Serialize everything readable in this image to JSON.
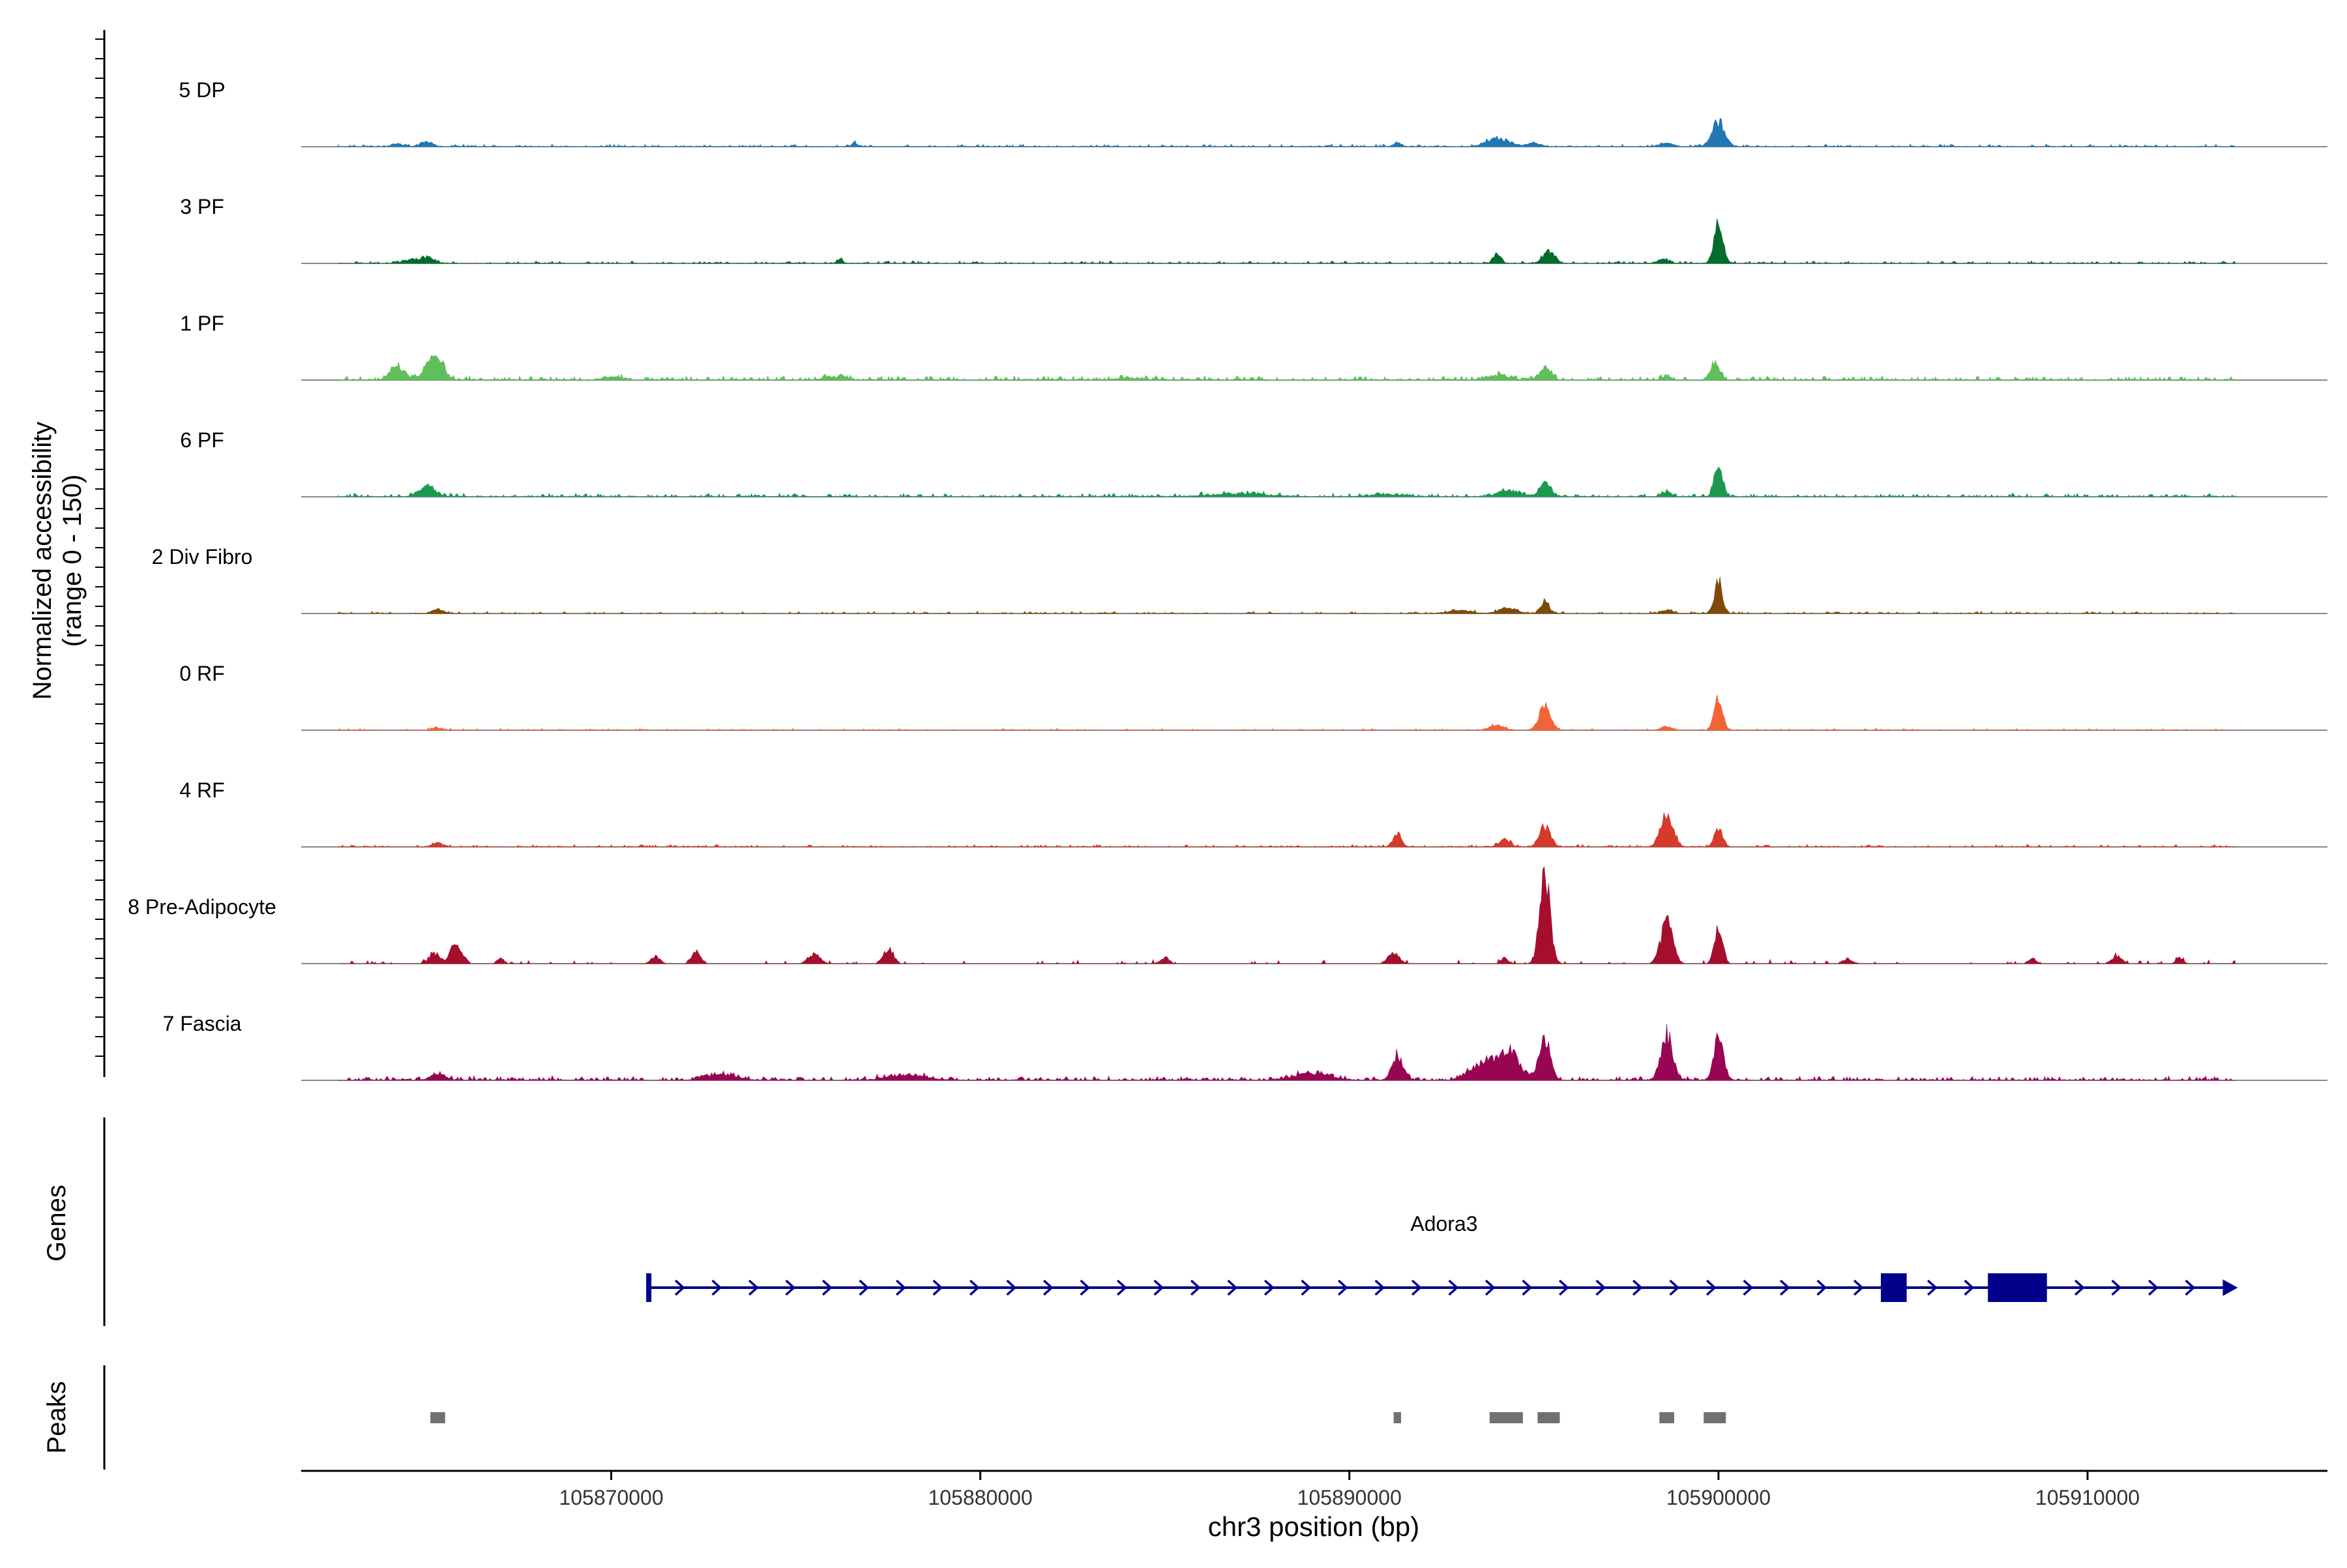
{
  "chart_data": {
    "type": "area",
    "xlabel": "chr3 position (bp)",
    "ylabel_line1": "Normalized accessibility",
    "ylabel_line2": "(range 0 - 150)",
    "y_range": [
      0,
      150
    ],
    "x_range": [
      105861600,
      105916500
    ],
    "x_ticks": [
      {
        "value": 105870000,
        "label": "105870000"
      },
      {
        "value": 105880000,
        "label": "105880000"
      },
      {
        "value": 105890000,
        "label": "105890000"
      },
      {
        "value": 105900000,
        "label": "105900000"
      },
      {
        "value": 105910000,
        "label": "105910000"
      }
    ],
    "signal_start": 105862600,
    "signal_end": 105914000,
    "tracks": [
      {
        "name": "5 DP",
        "color": "#1f78b4",
        "noise": 3,
        "density": 0.55,
        "peaks": [
          [
            105864200,
            4,
            150
          ],
          [
            105865000,
            7,
            160
          ],
          [
            105876600,
            5,
            80
          ],
          [
            105891300,
            6,
            100
          ],
          [
            105894000,
            11,
            300
          ],
          [
            105895000,
            5,
            180
          ],
          [
            105898600,
            4,
            200
          ],
          [
            105900000,
            33,
            170
          ]
        ]
      },
      {
        "name": "3 PF",
        "color": "#006d2c",
        "noise": 3,
        "density": 0.55,
        "peaks": [
          [
            105864500,
            4,
            180
          ],
          [
            105865000,
            8,
            200
          ],
          [
            105876200,
            5,
            80
          ],
          [
            105894000,
            12,
            100
          ],
          [
            105895400,
            16,
            160
          ],
          [
            105898500,
            5,
            150
          ],
          [
            105900000,
            50,
            120
          ]
        ]
      },
      {
        "name": "1 PF",
        "color": "#5ebf5b",
        "noise": 5,
        "density": 0.75,
        "peaks": [
          [
            105864200,
            17,
            200
          ],
          [
            105865200,
            33,
            220
          ],
          [
            105870000,
            4,
            250
          ],
          [
            105876000,
            4,
            300
          ],
          [
            105884000,
            3,
            300
          ],
          [
            105894000,
            6,
            300
          ],
          [
            105895300,
            15,
            150
          ],
          [
            105898600,
            7,
            100
          ],
          [
            105899900,
            21,
            130
          ]
        ]
      },
      {
        "name": "6 PF",
        "color": "#1b9a4f",
        "noise": 4,
        "density": 0.7,
        "peaks": [
          [
            105865000,
            13,
            220
          ],
          [
            105887000,
            4,
            800
          ],
          [
            105891000,
            3,
            500
          ],
          [
            105894300,
            8,
            300
          ],
          [
            105895300,
            17,
            160
          ],
          [
            105898600,
            6,
            130
          ],
          [
            105900000,
            42,
            110
          ]
        ]
      },
      {
        "name": "2 Div Fibro",
        "color": "#7f4a05",
        "noise": 2.5,
        "density": 0.5,
        "peaks": [
          [
            105865300,
            6,
            150
          ],
          [
            105893000,
            4,
            300
          ],
          [
            105894300,
            7,
            250
          ],
          [
            105895300,
            15,
            120
          ],
          [
            105898600,
            5,
            150
          ],
          [
            105900000,
            42,
            110
          ]
        ]
      },
      {
        "name": "0 RF",
        "color": "#f26437",
        "noise": 2,
        "density": 0.45,
        "peaks": [
          [
            105865300,
            3,
            150
          ],
          [
            105894000,
            6,
            200
          ],
          [
            105895300,
            33,
            150
          ],
          [
            105898600,
            5,
            150
          ],
          [
            105900000,
            42,
            110
          ]
        ]
      },
      {
        "name": "4 RF",
        "color": "#d53a2a",
        "noise": 3,
        "density": 0.55,
        "peaks": [
          [
            105865300,
            5,
            150
          ],
          [
            105891300,
            17,
            120
          ],
          [
            105894200,
            10,
            150
          ],
          [
            105895300,
            28,
            150
          ],
          [
            105898600,
            40,
            170
          ],
          [
            105900000,
            25,
            110
          ]
        ]
      },
      {
        "name": "8 Pre-Adipocyte",
        "color": "#a50f2d",
        "noise": 3,
        "density": 0.16,
        "sparse": true,
        "peaks": [
          [
            105865800,
            26,
            160
          ],
          [
            105865200,
            14,
            140
          ],
          [
            105867000,
            7,
            100
          ],
          [
            105871200,
            10,
            120
          ],
          [
            105872300,
            14,
            130
          ],
          [
            105875500,
            12,
            160
          ],
          [
            105877500,
            18,
            140
          ],
          [
            105885000,
            8,
            120
          ],
          [
            105891200,
            14,
            150
          ],
          [
            105894200,
            7,
            100
          ],
          [
            105895300,
            115,
            140
          ],
          [
            105898600,
            55,
            160
          ],
          [
            105900000,
            50,
            110
          ],
          [
            105903500,
            7,
            120
          ],
          [
            105908500,
            8,
            100
          ],
          [
            105910800,
            10,
            140
          ],
          [
            105912500,
            7,
            100
          ]
        ]
      },
      {
        "name": "7 Fascia",
        "color": "#990555",
        "noise": 5,
        "density": 0.75,
        "peaks": [
          [
            105865300,
            8,
            200
          ],
          [
            105873000,
            8,
            400
          ],
          [
            105878000,
            7,
            500
          ],
          [
            105889000,
            8,
            500
          ],
          [
            105891300,
            33,
            150
          ],
          [
            105893600,
            20,
            350
          ],
          [
            105894300,
            37,
            300
          ],
          [
            105895300,
            53,
            150
          ],
          [
            105898600,
            57,
            160
          ],
          [
            105900000,
            55,
            130
          ]
        ]
      }
    ],
    "gene": {
      "name": "Adora3",
      "color": "#00008b",
      "start": 105871000,
      "end": 105914000,
      "strand": "+",
      "exons": [
        [
          105904400,
          105905100
        ],
        [
          105907300,
          105908900
        ]
      ]
    },
    "peaks_track": {
      "color": "#707070",
      "regions": [
        [
          105865100,
          105865500
        ],
        [
          105891200,
          105891400
        ],
        [
          105893800,
          105894700
        ],
        [
          105895100,
          105895700
        ],
        [
          105898400,
          105898800
        ],
        [
          105899600,
          105900200
        ]
      ]
    },
    "panel_labels": {
      "genes": "Genes",
      "peaks": "Peaks"
    }
  }
}
